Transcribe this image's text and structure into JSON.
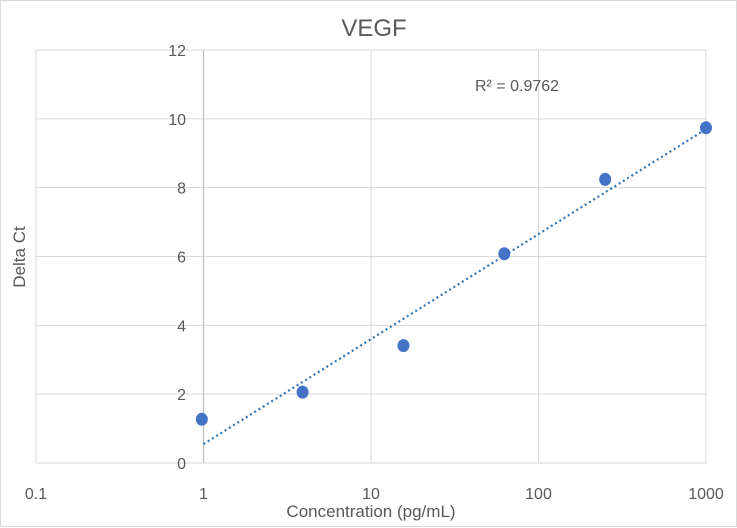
{
  "chart_data": {
    "type": "scatter",
    "title": "VEGF",
    "xlabel": "Concentration (pg/mL)",
    "ylabel": "Delta Ct",
    "x_scale": "log",
    "xlim": [
      0.1,
      1000
    ],
    "ylim": [
      0,
      12
    ],
    "x_ticks": [
      "0.1",
      "1",
      "10",
      "100",
      "1000"
    ],
    "y_ticks": [
      "0",
      "2",
      "4",
      "6",
      "8",
      "10",
      "12"
    ],
    "grid": true,
    "legend": "none",
    "series": [
      {
        "x": [
          0.977,
          3.906,
          15.625,
          62.5,
          250,
          1000
        ],
        "y": [
          1.27,
          2.06,
          3.41,
          6.08,
          8.24,
          9.74
        ],
        "color": "#4472c4"
      }
    ],
    "trendline": {
      "type": "logarithmic",
      "style": "dotted",
      "color": "#2e75b6",
      "x_range": [
        1,
        1000
      ],
      "y_range": [
        0.55,
        9.7
      ]
    },
    "annotation": "R² = 0.9762"
  }
}
